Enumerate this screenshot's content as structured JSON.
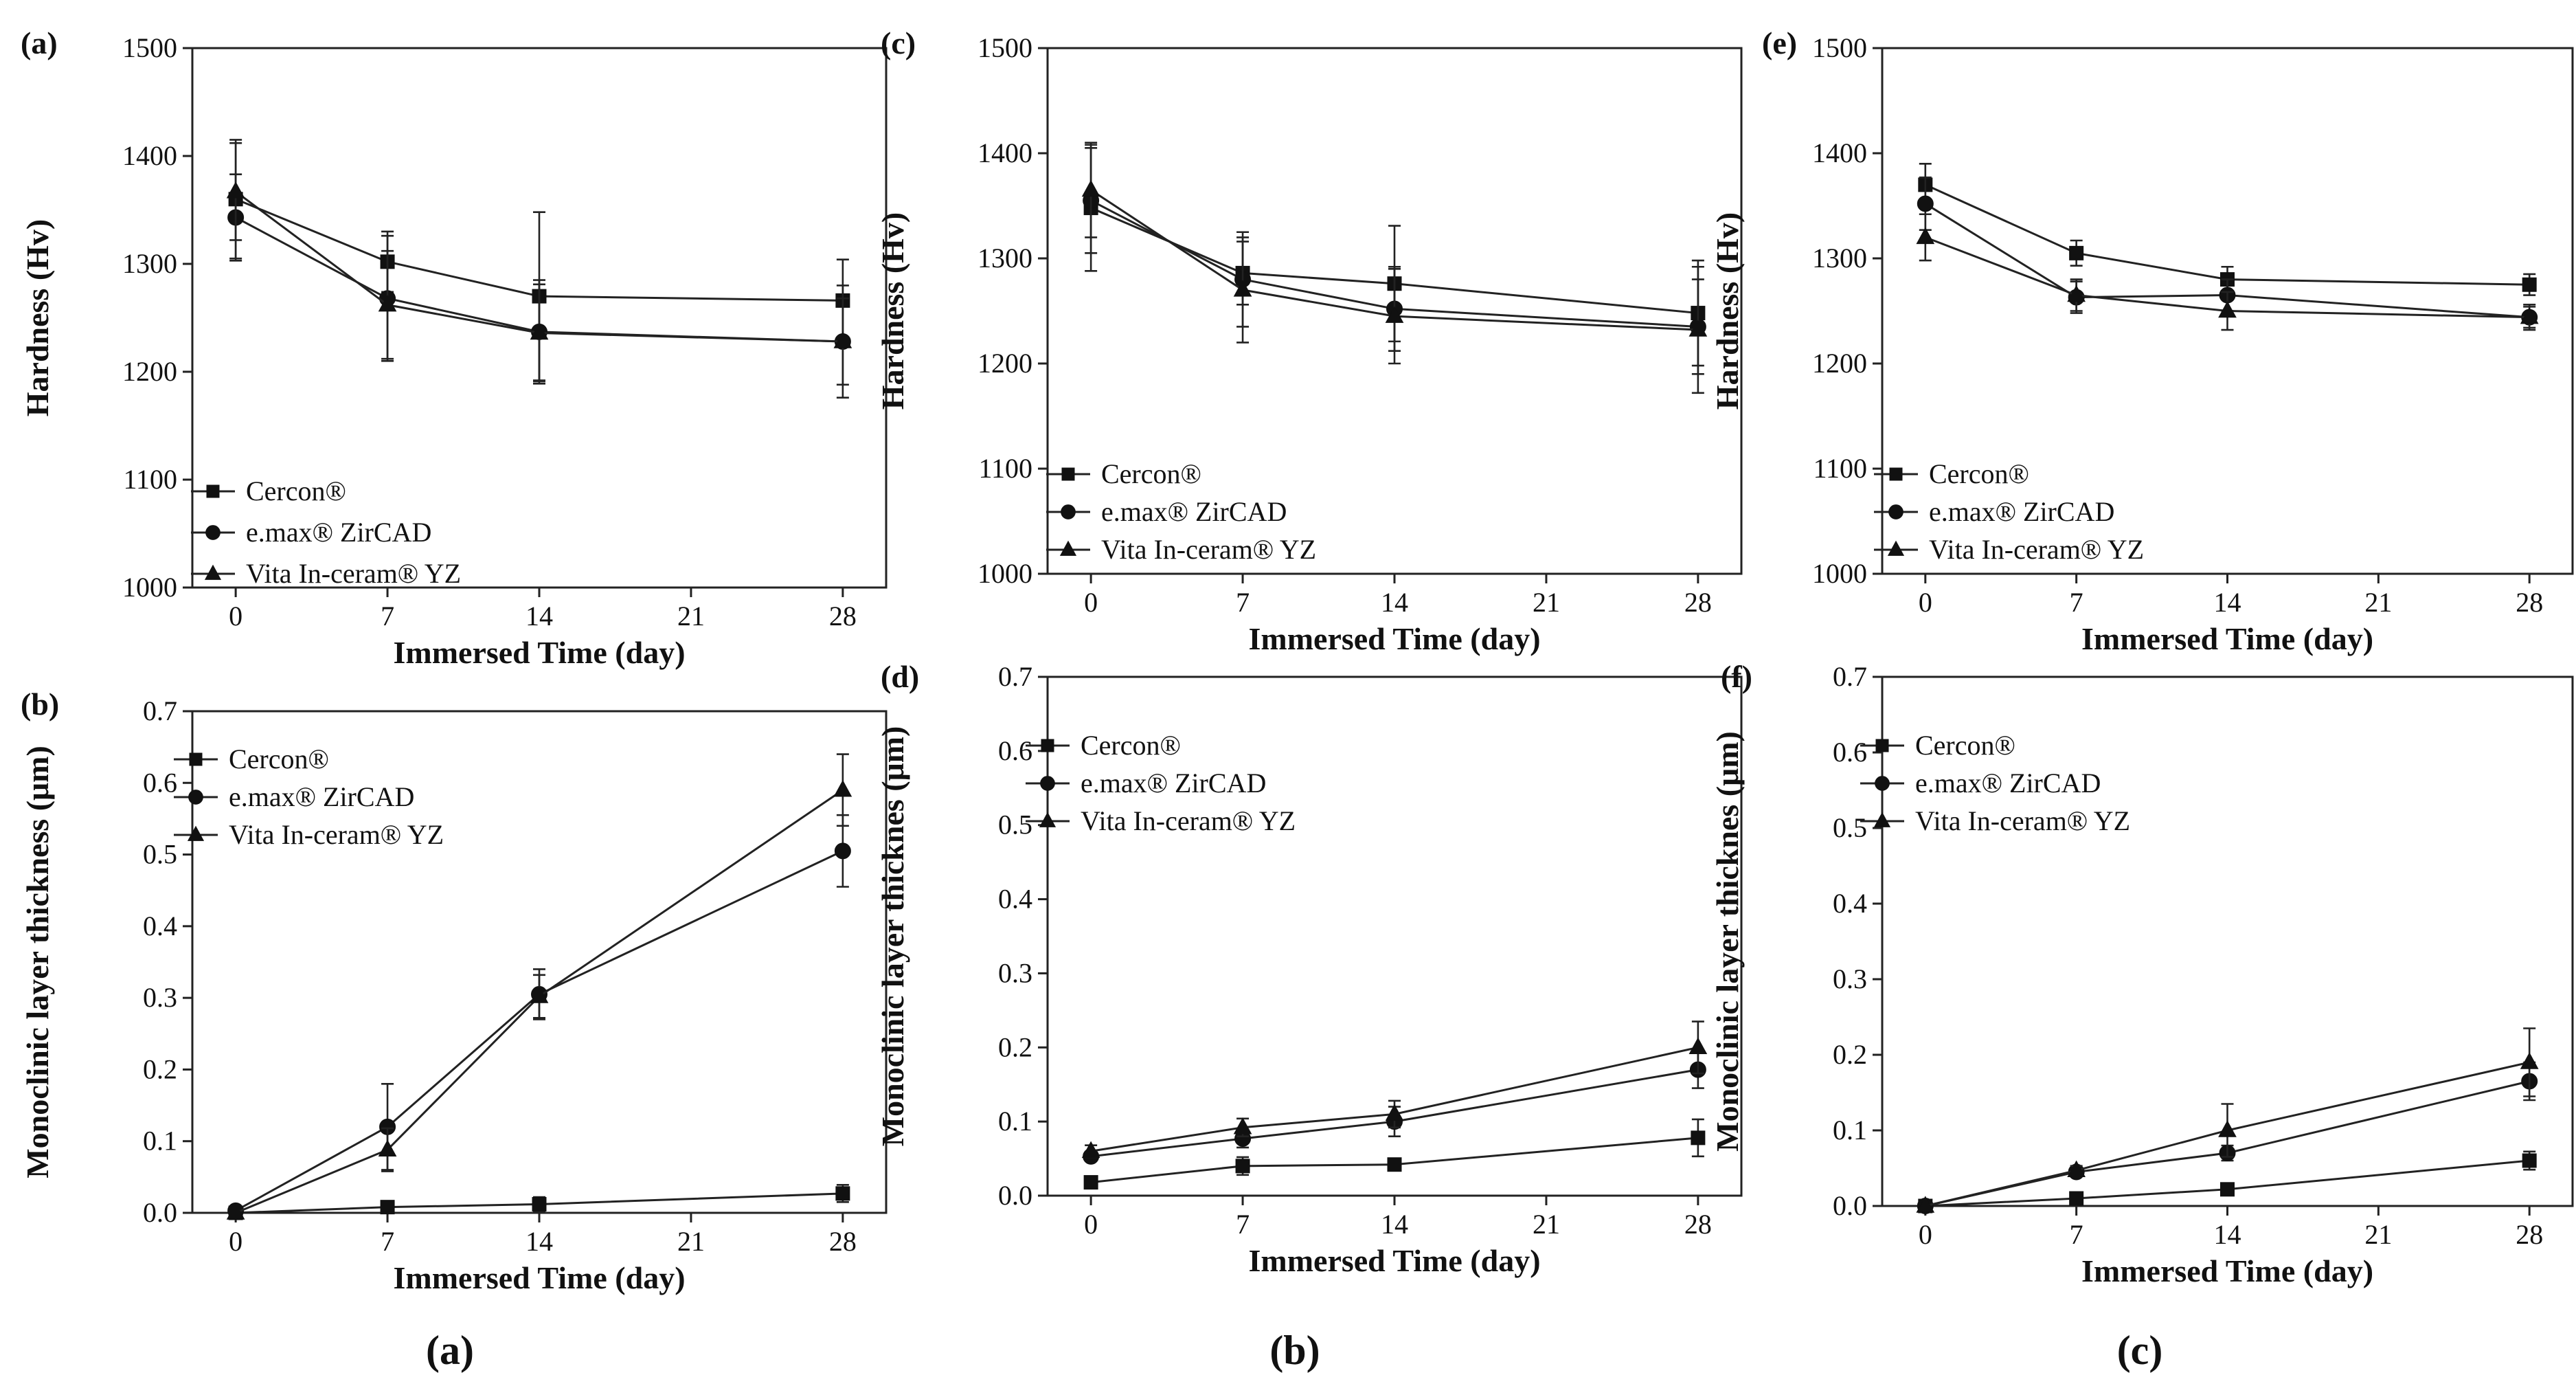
{
  "chart_data": [
    {
      "id": "a",
      "panel_label": "(a)",
      "type": "line",
      "xlabel": "Immersed Time (day)",
      "ylabel": "Hardness (Hv)",
      "x": [
        0,
        7,
        14,
        28
      ],
      "xticks": [
        0,
        7,
        14,
        21,
        28
      ],
      "xlim": [
        -2,
        30
      ],
      "ylim": [
        1000,
        1500
      ],
      "yticks": [
        1000,
        1100,
        1200,
        1300,
        1400,
        1500
      ],
      "legend_position": "bottom-left",
      "series": [
        {
          "name": "Cercon®",
          "marker": "square",
          "values": [
            1360,
            1302,
            1270,
            1266
          ],
          "errors": [
            55,
            28,
            78,
            38
          ]
        },
        {
          "name": "e.max® ZirCAD",
          "marker": "circle",
          "values": [
            1343,
            1268,
            1237,
            1228
          ],
          "errors": [
            40,
            58,
            48,
            52
          ]
        },
        {
          "name": "Vita In-ceram® YZ",
          "marker": "triangle",
          "values": [
            1367,
            1262,
            1236,
            1228
          ],
          "errors": [
            45,
            50,
            45,
            40
          ]
        }
      ]
    },
    {
      "id": "b",
      "panel_label": "(b)",
      "type": "line",
      "xlabel": "Immersed Time (day)",
      "ylabel": "Monoclinic layer thickness (μm)",
      "x": [
        0,
        7,
        14,
        28
      ],
      "xticks": [
        0,
        7,
        14,
        21,
        28
      ],
      "xlim": [
        -2,
        30
      ],
      "ylim": [
        0,
        0.7
      ],
      "yticks": [
        "0.0",
        "0.1",
        "0.2",
        "0.3",
        "0.4",
        "0.5",
        "0.6",
        "0.7"
      ],
      "legend_position": "top-left",
      "series": [
        {
          "name": "Cercon®",
          "marker": "square",
          "values": [
            0.0,
            0.008,
            0.012,
            0.027
          ],
          "errors": [
            0,
            0.004,
            0.01,
            0.012
          ]
        },
        {
          "name": "e.max® ZirCAD",
          "marker": "circle",
          "values": [
            0.003,
            0.12,
            0.305,
            0.505
          ],
          "errors": [
            0,
            0.06,
            0.035,
            0.05
          ]
        },
        {
          "name": "Vita In-ceram® YZ",
          "marker": "triangle",
          "values": [
            0.0,
            0.088,
            0.302,
            0.59
          ],
          "errors": [
            0,
            0.03,
            0.03,
            0.05
          ]
        }
      ]
    },
    {
      "id": "c",
      "panel_label": "(c)",
      "type": "line",
      "xlabel": "Immersed Time (day)",
      "ylabel": "Hardness (Hv)",
      "x": [
        0,
        7,
        14,
        28
      ],
      "xticks": [
        0,
        7,
        14,
        21,
        28
      ],
      "xlim": [
        -2,
        30
      ],
      "ylim": [
        1000,
        1500
      ],
      "yticks": [
        1000,
        1100,
        1200,
        1300,
        1400,
        1500
      ],
      "legend_position": "bottom-left",
      "series": [
        {
          "name": "Cercon®",
          "marker": "square",
          "values": [
            1348,
            1286,
            1276,
            1248
          ],
          "errors": [
            60,
            30,
            55,
            50
          ]
        },
        {
          "name": "e.max® ZirCAD",
          "marker": "circle",
          "values": [
            1355,
            1280,
            1252,
            1235
          ],
          "errors": [
            50,
            45,
            40,
            45
          ]
        },
        {
          "name": "Vita In-ceram® YZ",
          "marker": "triangle",
          "values": [
            1365,
            1270,
            1245,
            1232
          ],
          "errors": [
            45,
            50,
            45,
            60
          ]
        }
      ]
    },
    {
      "id": "d",
      "panel_label": "(d)",
      "type": "line",
      "xlabel": "Immersed Time (day)",
      "ylabel": "Monoclinic layer thicknes (μm)",
      "x": [
        0,
        7,
        14,
        28
      ],
      "xticks": [
        0,
        7,
        14,
        21,
        28
      ],
      "xlim": [
        -2,
        30
      ],
      "ylim": [
        0,
        0.7
      ],
      "yticks": [
        "0.0",
        "0.1",
        "0.2",
        "0.3",
        "0.4",
        "0.5",
        "0.6",
        "0.7"
      ],
      "legend_position": "top-left",
      "series": [
        {
          "name": "Cercon®",
          "marker": "square",
          "values": [
            0.018,
            0.04,
            0.042,
            0.078
          ],
          "errors": [
            0.004,
            0.012,
            0.005,
            0.025
          ]
        },
        {
          "name": "e.max® ZirCAD",
          "marker": "circle",
          "values": [
            0.053,
            0.077,
            0.1,
            0.17
          ],
          "errors": [
            0.006,
            0.012,
            0.02,
            0.025
          ]
        },
        {
          "name": "Vita In-ceram® YZ",
          "marker": "triangle",
          "values": [
            0.06,
            0.092,
            0.11,
            0.2
          ],
          "errors": [
            0.008,
            0.012,
            0.018,
            0.035
          ]
        }
      ]
    },
    {
      "id": "e",
      "panel_label": "(e)",
      "type": "line",
      "xlabel": "Immersed Time (day)",
      "ylabel": "Hardness (Hv)",
      "x": [
        0,
        7,
        14,
        28
      ],
      "xticks": [
        0,
        7,
        14,
        21,
        28
      ],
      "xlim": [
        -2,
        30
      ],
      "ylim": [
        1000,
        1500
      ],
      "yticks": [
        1000,
        1100,
        1200,
        1300,
        1400,
        1500
      ],
      "legend_position": "bottom-left",
      "series": [
        {
          "name": "Cercon®",
          "marker": "square",
          "values": [
            1370,
            1305,
            1280,
            1275
          ],
          "errors": [
            20,
            12,
            12,
            10
          ]
        },
        {
          "name": "e.max® ZirCAD",
          "marker": "circle",
          "values": [
            1352,
            1263,
            1265,
            1244
          ],
          "errors": [
            25,
            15,
            15,
            10
          ]
        },
        {
          "name": "Vita In-ceram® YZ",
          "marker": "triangle",
          "values": [
            1320,
            1265,
            1250,
            1244
          ],
          "errors": [
            22,
            15,
            18,
            12
          ]
        }
      ]
    },
    {
      "id": "f",
      "panel_label": "(f)",
      "type": "line",
      "xlabel": "Immersed Time (day)",
      "ylabel": "Monoclinic layer thicknes (μm)",
      "x": [
        0,
        7,
        14,
        28
      ],
      "xticks": [
        0,
        7,
        14,
        21,
        28
      ],
      "xlim": [
        -2,
        30
      ],
      "ylim": [
        0,
        0.7
      ],
      "yticks": [
        "0.0",
        "0.1",
        "0.2",
        "0.3",
        "0.4",
        "0.5",
        "0.6",
        "0.7"
      ],
      "legend_position": "top-left",
      "series": [
        {
          "name": "Cercon®",
          "marker": "square",
          "values": [
            0.0,
            0.01,
            0.022,
            0.06
          ],
          "errors": [
            0,
            0.004,
            0.005,
            0.012
          ]
        },
        {
          "name": "e.max® ZirCAD",
          "marker": "circle",
          "values": [
            0.0,
            0.045,
            0.07,
            0.165
          ],
          "errors": [
            0,
            0.005,
            0.01,
            0.025
          ]
        },
        {
          "name": "Vita In-ceram® YZ",
          "marker": "triangle",
          "values": [
            0.0,
            0.047,
            0.1,
            0.19
          ],
          "errors": [
            0,
            0.006,
            0.035,
            0.045
          ]
        }
      ]
    }
  ],
  "column_labels": [
    "(a)",
    "(b)",
    "(c)"
  ]
}
